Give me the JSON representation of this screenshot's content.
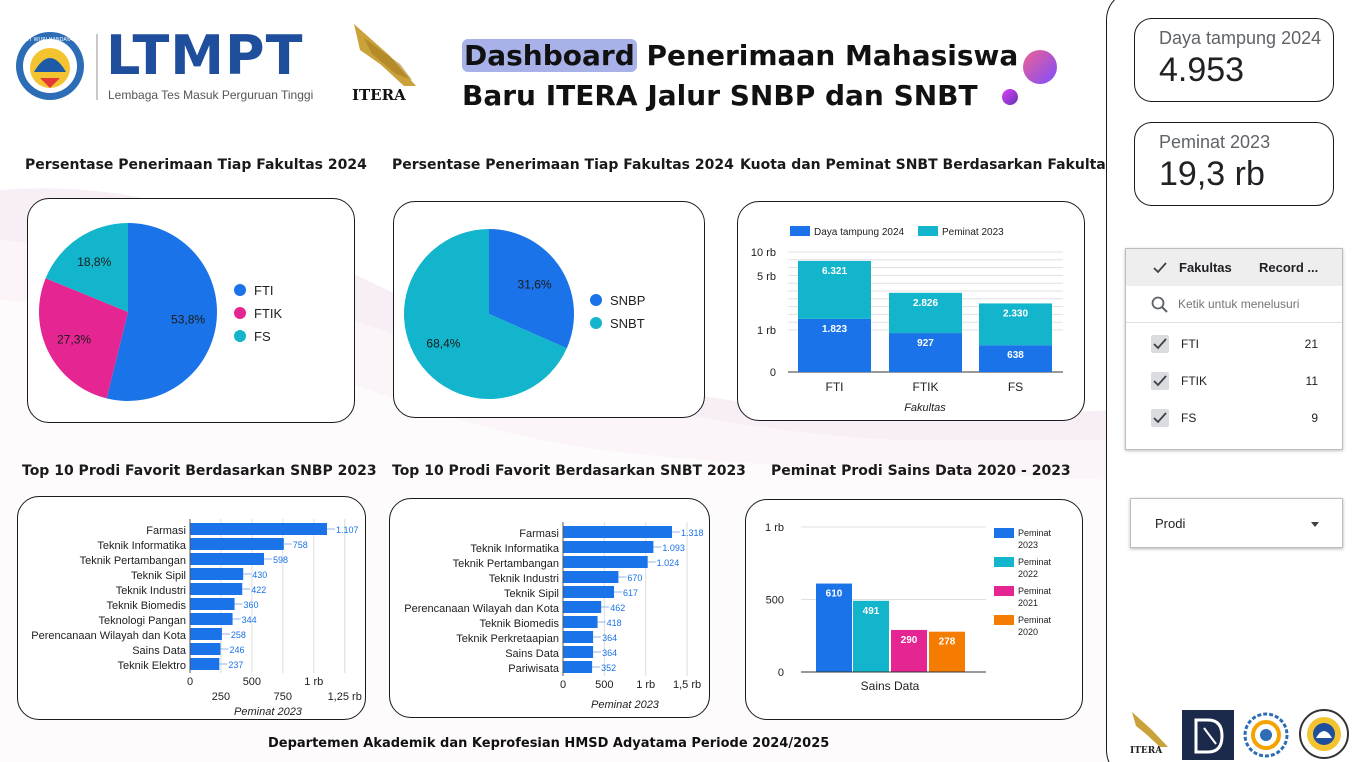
{
  "header": {
    "title_highlight": "Dashboard",
    "title_rest1": " Penerimaan Mahasiswa",
    "title_line2": "Baru ITERA Jalur SNBP dan SNBT",
    "ltmpt_logo": "LTMPT",
    "ltmpt_tagline": "Lembaga Tes Masuk Perguruan Tinggi",
    "tut_wuri": "TUT WURI HANDAYANI",
    "itera_logo": "ITERA"
  },
  "footer": {
    "text": "Departemen Akademik dan Keprofesian HMSD Adyatama Periode 2024/2025"
  },
  "scorecards": {
    "daya_tampung": {
      "label": "Daya tampung 2024",
      "value": "4.953"
    },
    "peminat": {
      "label": "Peminat 2023",
      "value": "19,3 rb"
    }
  },
  "filter": {
    "header_label": "Fakultas",
    "header_count": "Record ...",
    "search_placeholder": "Ketik untuk menelusuri",
    "items": [
      {
        "label": "FTI",
        "count": "21"
      },
      {
        "label": "FTIK",
        "count": "11"
      },
      {
        "label": "FS",
        "count": "9"
      }
    ]
  },
  "dropdown": {
    "label": "Prodi"
  },
  "colors": {
    "blue": "#1a73e8",
    "teal": "#12b5cb",
    "pink": "#e52592",
    "orange": "#f57c00",
    "highlight": "#a8b2e8"
  },
  "chart_data": [
    {
      "id": "pie1",
      "type": "pie",
      "title": "Persentase Penerimaan Tiap Fakultas 2024",
      "labels": [
        "FTI",
        "FTIK",
        "FS"
      ],
      "values": [
        53.8,
        27.3,
        18.8
      ],
      "value_labels": [
        "53,8%",
        "27,3%",
        "18,8%"
      ],
      "colors": [
        "#1a73e8",
        "#e52592",
        "#12b5cb"
      ]
    },
    {
      "id": "pie2",
      "type": "pie",
      "title": "Persentase Penerimaan Tiap Fakultas 2024",
      "labels": [
        "SNBP",
        "SNBT"
      ],
      "values": [
        31.6,
        68.4
      ],
      "value_labels": [
        "31,6%",
        "68,4%"
      ],
      "colors": [
        "#1a73e8",
        "#12b5cb"
      ]
    },
    {
      "id": "kuota",
      "type": "bar",
      "title": "Kuota dan Peminat SNBT Berdasarkan Fakultas",
      "categories": [
        "FTI",
        "FTIK",
        "FS"
      ],
      "series": [
        {
          "name": "Daya tampung 2024",
          "values": [
            1823,
            927,
            638
          ],
          "labels": [
            "1.823",
            "927",
            "638"
          ],
          "color": "#1a73e8"
        },
        {
          "name": "Peminat 2023",
          "values": [
            6321,
            2826,
            2330
          ],
          "labels": [
            "6.321",
            "2.826",
            "2.330"
          ],
          "color": "#12b5cb"
        }
      ],
      "stacked": true,
      "yscale": "log",
      "yticks": [
        "0",
        "1 rb",
        "5 rb",
        "10 rb"
      ],
      "xlabel": "Fakultas"
    },
    {
      "id": "snbp",
      "type": "bar",
      "orientation": "horizontal",
      "title": "Top 10 Prodi Favorit Berdasarkan SNBP 2023",
      "categories": [
        "Farmasi",
        "Teknik Informatika",
        "Teknik Pertambangan",
        "Teknik Sipil",
        "Teknik Industri",
        "Teknik Biomedis",
        "Teknologi Pangan",
        "Perencanaan Wilayah dan Kota",
        "Sains Data",
        "Teknik Elektro"
      ],
      "values": [
        1107,
        758,
        598,
        430,
        422,
        360,
        344,
        258,
        246,
        237
      ],
      "value_labels": [
        "1.107",
        "758",
        "598",
        "430",
        "422",
        "360",
        "344",
        "258",
        "246",
        "237"
      ],
      "xmax": 1250,
      "xticks_top": [
        "0",
        "500",
        "1 rb"
      ],
      "xticks_bottom": [
        "250",
        "750",
        "1,25 rb"
      ],
      "xlabel": "Peminat 2023",
      "color": "#1a73e8"
    },
    {
      "id": "snbt",
      "type": "bar",
      "orientation": "horizontal",
      "title": "Top 10 Prodi Favorit Berdasarkan SNBT 2023",
      "categories": [
        "Farmasi",
        "Teknik Informatika",
        "Teknik Pertambangan",
        "Teknik Industri",
        "Teknik Sipil",
        "Perencanaan Wilayah dan Kota",
        "Teknik Biomedis",
        "Teknik Perkretaapian",
        "Sains Data",
        "Pariwisata"
      ],
      "values": [
        1318,
        1093,
        1024,
        670,
        617,
        462,
        418,
        364,
        364,
        352
      ],
      "value_labels": [
        "1.318",
        "1.093",
        "1.024",
        "670",
        "617",
        "462",
        "418",
        "364",
        "364",
        "352"
      ],
      "xmax": 1500,
      "xticks": [
        "0",
        "500",
        "1 rb",
        "1,5 rb"
      ],
      "xlabel": "Peminat 2023",
      "color": "#1a73e8"
    },
    {
      "id": "sainsdata",
      "type": "bar",
      "title": "Peminat Prodi Sains Data 2020 - 2023",
      "categories": [
        "Sains Data"
      ],
      "series": [
        {
          "name": "Peminat 2023",
          "values": [
            610
          ],
          "label": "610",
          "color": "#1a73e8"
        },
        {
          "name": "Peminat 2022",
          "values": [
            491
          ],
          "label": "491",
          "color": "#12b5cb"
        },
        {
          "name": "Peminat 2021",
          "values": [
            290
          ],
          "label": "290",
          "color": "#e52592"
        },
        {
          "name": "Peminat 2020",
          "values": [
            278
          ],
          "label": "278",
          "color": "#f57c00"
        }
      ],
      "ylim": [
        0,
        1000
      ],
      "yticks": [
        "0",
        "500",
        "1 rb"
      ]
    }
  ]
}
